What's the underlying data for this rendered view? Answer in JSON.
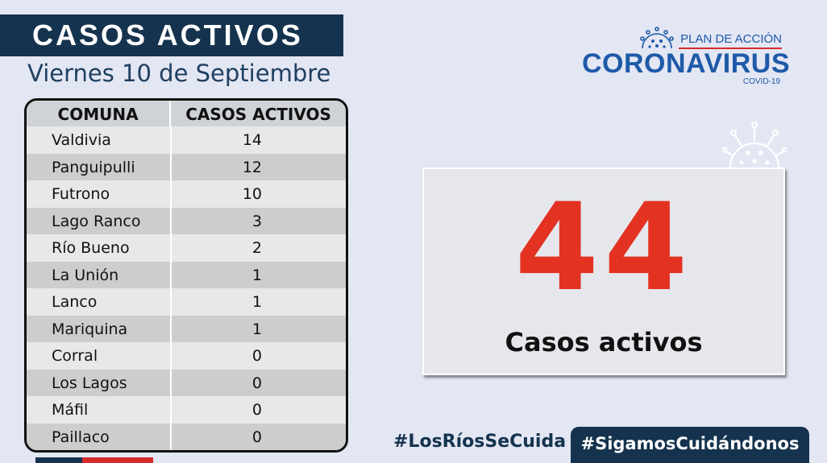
{
  "header": {
    "title": "CASOS ACTIVOS",
    "date": "Viernes 10 de Septiembre"
  },
  "table": {
    "columns": [
      "COMUNA",
      "CASOS ACTIVOS"
    ],
    "rows": [
      {
        "comuna": "Valdivia",
        "casos": "14"
      },
      {
        "comuna": "Panguipulli",
        "casos": "12"
      },
      {
        "comuna": "Futrono",
        "casos": "10"
      },
      {
        "comuna": "Lago Ranco",
        "casos": "3"
      },
      {
        "comuna": "Río Bueno",
        "casos": "2"
      },
      {
        "comuna": "La Unión",
        "casos": "1"
      },
      {
        "comuna": "Lanco",
        "casos": "1"
      },
      {
        "comuna": "Mariquina",
        "casos": "1"
      },
      {
        "comuna": "Corral",
        "casos": "0"
      },
      {
        "comuna": "Los Lagos",
        "casos": "0"
      },
      {
        "comuna": "Máfil",
        "casos": "0"
      },
      {
        "comuna": "Paillaco",
        "casos": "0"
      }
    ]
  },
  "logo": {
    "top": "PLAN DE ACCIÓN",
    "main": "CORONAVIRUS",
    "sub": "COVID-19"
  },
  "summary": {
    "total": "44",
    "label": "Casos activos"
  },
  "footer": {
    "hashtag1": "#LosRíosSeCuida",
    "hashtag2": "#SigamosCuidándonos"
  },
  "colors": {
    "navy": "#15334e",
    "brand_blue": "#1e5aa8",
    "red": "#e33222",
    "background": "#e3e6f3"
  },
  "icons": [
    "coronavirus-icon"
  ]
}
